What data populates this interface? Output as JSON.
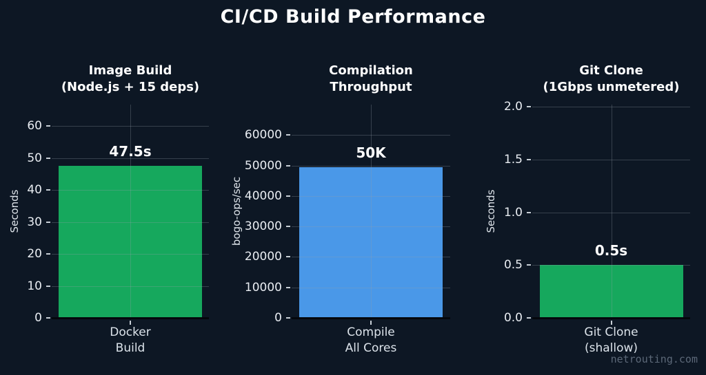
{
  "page": {
    "title": "CI/CD Build Performance",
    "watermark": "netrouting.com",
    "background_color": "#0d1724"
  },
  "chart_data": [
    {
      "type": "bar",
      "title": "Image Build\n(Node.js + 15 deps)",
      "ylabel": "Seconds",
      "xlabel": "",
      "categories": [
        "Docker\nBuild"
      ],
      "values": [
        47.5
      ],
      "value_labels": [
        "47.5s"
      ],
      "bar_color": "#16a85d",
      "yticks": [
        0,
        10,
        20,
        30,
        40,
        50,
        60
      ],
      "ytick_labels": [
        "0",
        "10",
        "20",
        "30",
        "40",
        "50",
        "60"
      ],
      "ylim": [
        0,
        66.7
      ],
      "grid": true,
      "legend": "none"
    },
    {
      "type": "bar",
      "title": "Compilation\nThroughput",
      "ylabel": "bogo-ops/sec",
      "xlabel": "",
      "categories": [
        "Compile\nAll Cores"
      ],
      "values": [
        49500
      ],
      "value_labels": [
        "50K"
      ],
      "bar_color": "#4a98e8",
      "yticks": [
        0,
        10000,
        20000,
        30000,
        40000,
        50000,
        60000
      ],
      "ytick_labels": [
        "0",
        "10000",
        "20000",
        "30000",
        "40000",
        "50000",
        "60000"
      ],
      "ylim": [
        0,
        70000
      ],
      "grid": true,
      "legend": "none"
    },
    {
      "type": "bar",
      "title": "Git Clone\n(1Gbps unmetered)",
      "ylabel": "Seconds",
      "xlabel": "",
      "categories": [
        "Git Clone\n(shallow)"
      ],
      "values": [
        0.5
      ],
      "value_labels": [
        "0.5s"
      ],
      "bar_color": "#16a85d",
      "yticks": [
        0.0,
        0.5,
        1.0,
        1.5,
        2.0
      ],
      "ytick_labels": [
        "0.0",
        "0.5",
        "1.0",
        "1.5",
        "2.0"
      ],
      "ylim": [
        0,
        2.02
      ],
      "grid": true,
      "legend": "none"
    }
  ]
}
